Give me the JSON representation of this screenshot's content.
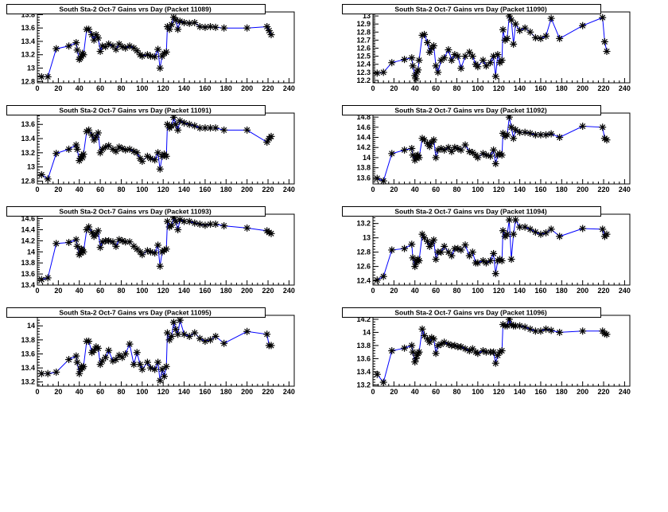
{
  "chart_data": [
    {
      "type": "line",
      "title": "South Sta-2 Oct-7 Gains vrs Day (Packet 11089)",
      "xlabel": "",
      "ylabel": "",
      "xlim": [
        0,
        245
      ],
      "ylim": [
        12.78,
        13.84
      ],
      "xticks": [
        "0",
        "20",
        "40",
        "60",
        "80",
        "100",
        "120",
        "140",
        "160",
        "180",
        "200",
        "220",
        "240"
      ],
      "yticks": [
        12.8,
        13.0,
        13.2,
        13.4,
        13.6,
        13.8
      ],
      "ytick_labels": [
        "12.8",
        "13",
        "13.2",
        "13.4",
        "13.6",
        "13.8"
      ],
      "series": [
        {
          "name": "gain",
          "color": "#0000ff",
          "marker": "asterisk",
          "values": [
            12.87,
            12.87,
            13.29,
            13.33,
            13.38,
            13.27,
            13.13,
            13.15,
            13.18,
            13.22,
            13.2,
            13.58,
            13.58,
            13.5,
            13.42,
            13.5,
            13.45,
            13.25,
            13.33,
            13.32,
            13.36,
            13.33,
            13.28,
            13.36,
            13.32,
            13.3,
            13.33,
            13.3,
            13.26,
            13.2,
            13.18,
            13.2,
            13.18,
            13.17,
            13.28,
            13.0,
            13.18,
            13.22,
            13.24,
            13.62,
            13.58,
            13.65,
            13.76,
            13.72,
            13.58,
            13.7,
            13.68,
            13.67,
            13.68,
            13.62,
            13.61,
            13.62,
            13.61,
            13.6,
            13.6,
            13.62,
            13.56,
            13.5
          ]
        }
      ]
    },
    {
      "type": "line",
      "title": "South Sta-2 Oct-7 Gains vrs Day (Packet 11090)",
      "xlabel": "",
      "ylabel": "",
      "xlim": [
        0,
        245
      ],
      "ylim": [
        12.17,
        13.05
      ],
      "xticks": [
        "0",
        "20",
        "40",
        "60",
        "80",
        "100",
        "120",
        "140",
        "160",
        "180",
        "200",
        "220",
        "240"
      ],
      "yticks": [
        12.2,
        12.3,
        12.4,
        12.5,
        12.6,
        12.7,
        12.8,
        12.9,
        13.0
      ],
      "ytick_labels": [
        "12.2",
        "12.3",
        "12.4",
        "12.5",
        "12.6",
        "12.7",
        "12.8",
        "12.9",
        "13"
      ],
      "series": [
        {
          "name": "gain",
          "color": "#0000ff",
          "marker": "asterisk",
          "values": [
            12.29,
            12.3,
            12.42,
            12.46,
            12.48,
            12.38,
            12.26,
            12.22,
            12.3,
            12.33,
            12.45,
            12.76,
            12.77,
            12.67,
            12.55,
            12.6,
            12.63,
            12.38,
            12.3,
            12.45,
            12.48,
            12.58,
            12.45,
            12.52,
            12.5,
            12.35,
            12.5,
            12.55,
            12.5,
            12.4,
            12.37,
            12.45,
            12.38,
            12.42,
            12.5,
            12.25,
            12.52,
            12.42,
            12.45,
            12.83,
            12.7,
            12.72,
            13.0,
            12.95,
            12.65,
            12.9,
            12.82,
            12.85,
            12.8,
            12.73,
            12.72,
            12.75,
            12.97,
            12.72,
            12.88,
            12.98,
            12.68,
            12.56
          ]
        }
      ]
    },
    {
      "type": "line",
      "title": "South Sta-2 Oct-7 Gains vrs Day (Packet 11091)",
      "xlabel": "",
      "ylabel": "",
      "xlim": [
        0,
        245
      ],
      "ylim": [
        12.76,
        13.76
      ],
      "xticks": [
        "0",
        "20",
        "40",
        "60",
        "80",
        "100",
        "120",
        "140",
        "160",
        "180",
        "200",
        "220",
        "240"
      ],
      "yticks": [
        12.8,
        13.0,
        13.2,
        13.4,
        13.6
      ],
      "ytick_labels": [
        "12.8",
        "13",
        "13.2",
        "13.4",
        "13.6"
      ],
      "series": [
        {
          "name": "gain",
          "color": "#0000ff",
          "marker": "asterisk",
          "values": [
            12.89,
            12.83,
            13.19,
            13.25,
            13.31,
            13.25,
            13.09,
            13.12,
            13.15,
            13.13,
            13.18,
            13.5,
            13.52,
            13.45,
            13.38,
            13.42,
            13.48,
            13.2,
            13.25,
            13.28,
            13.3,
            13.25,
            13.22,
            13.28,
            13.26,
            13.24,
            13.25,
            13.22,
            13.2,
            13.12,
            13.08,
            13.15,
            13.12,
            13.1,
            13.2,
            12.97,
            13.15,
            13.18,
            13.15,
            13.6,
            13.55,
            13.58,
            13.7,
            13.6,
            13.52,
            13.65,
            13.62,
            13.6,
            13.58,
            13.55,
            13.55,
            13.55,
            13.55,
            13.52,
            13.52,
            13.35,
            13.4,
            13.43
          ]
        }
      ]
    },
    {
      "type": "line",
      "title": "South Sta-2 Oct-7 Gains vrs Day (Packet 11092)",
      "xlabel": "",
      "ylabel": "",
      "xlim": [
        0,
        245
      ],
      "ylim": [
        13.48,
        14.88
      ],
      "xticks": [
        "0",
        "20",
        "40",
        "60",
        "80",
        "100",
        "120",
        "140",
        "160",
        "180",
        "200",
        "220",
        "240"
      ],
      "yticks": [
        13.6,
        13.8,
        14.0,
        14.2,
        14.4,
        14.6,
        14.8
      ],
      "ytick_labels": [
        "13.6",
        "13.8",
        "14",
        "14.2",
        "14.4",
        "14.6",
        "14.8"
      ],
      "series": [
        {
          "name": "gain",
          "color": "#0000ff",
          "marker": "asterisk",
          "values": [
            13.59,
            13.54,
            14.08,
            14.15,
            14.18,
            14.05,
            13.95,
            14.0,
            14.03,
            14.05,
            14.0,
            14.38,
            14.35,
            14.28,
            14.22,
            14.3,
            14.35,
            14.0,
            14.15,
            14.18,
            14.15,
            14.2,
            14.12,
            14.2,
            14.18,
            14.15,
            14.25,
            14.12,
            14.1,
            14.05,
            14.0,
            14.08,
            14.05,
            14.03,
            14.15,
            13.88,
            14.05,
            14.08,
            14.05,
            14.48,
            14.42,
            14.45,
            14.8,
            14.6,
            14.38,
            14.55,
            14.5,
            14.5,
            14.48,
            14.45,
            14.45,
            14.45,
            14.47,
            14.4,
            14.62,
            14.6,
            14.38,
            14.35
          ]
        }
      ]
    },
    {
      "type": "line",
      "title": "South Sta-2 Oct-7 Gains vrs Day (Packet 11093)",
      "xlabel": "",
      "ylabel": "",
      "xlim": [
        0,
        245
      ],
      "ylim": [
        13.4,
        14.68
      ],
      "xticks": [
        "0",
        "20",
        "40",
        "60",
        "80",
        "100",
        "120",
        "140",
        "160",
        "180",
        "200",
        "220",
        "240"
      ],
      "yticks": [
        13.4,
        13.6,
        13.8,
        14.0,
        14.2,
        14.4,
        14.6
      ],
      "ytick_labels": [
        "13.4",
        "13.6",
        "13.8",
        "14",
        "14.2",
        "14.4",
        "14.6"
      ],
      "series": [
        {
          "name": "gain",
          "color": "#0000ff",
          "marker": "asterisk",
          "values": [
            13.5,
            13.53,
            14.15,
            14.17,
            14.22,
            14.1,
            13.95,
            13.98,
            14.05,
            14.03,
            14.0,
            14.4,
            14.45,
            14.35,
            14.28,
            14.32,
            14.38,
            14.08,
            14.18,
            14.2,
            14.2,
            14.18,
            14.1,
            14.22,
            14.2,
            14.18,
            14.18,
            14.1,
            14.05,
            14.0,
            13.95,
            14.02,
            14.0,
            13.98,
            14.12,
            13.74,
            14.0,
            14.03,
            14.05,
            14.55,
            14.45,
            14.48,
            14.62,
            14.55,
            14.4,
            14.58,
            14.55,
            14.55,
            14.52,
            14.5,
            14.48,
            14.5,
            14.5,
            14.47,
            14.43,
            14.38,
            14.35,
            14.33
          ]
        }
      ]
    },
    {
      "type": "line",
      "title": "South Sta-2 Oct-7 Gains vrs Day (Packet 11094)",
      "xlabel": "",
      "ylabel": "",
      "xlim": [
        0,
        245
      ],
      "ylim": [
        12.34,
        13.33
      ],
      "xticks": [
        "0",
        "20",
        "40",
        "60",
        "80",
        "100",
        "120",
        "140",
        "160",
        "180",
        "200",
        "220",
        "240"
      ],
      "yticks": [
        12.4,
        12.6,
        12.8,
        13.0,
        13.2
      ],
      "ytick_labels": [
        "12.4",
        "12.6",
        "12.8",
        "13",
        "13.2"
      ],
      "series": [
        {
          "name": "gain",
          "color": "#0000ff",
          "marker": "asterisk",
          "values": [
            12.41,
            12.46,
            12.83,
            12.85,
            12.91,
            12.72,
            12.6,
            12.65,
            12.68,
            12.7,
            12.68,
            13.05,
            13.0,
            12.95,
            12.88,
            12.92,
            12.97,
            12.7,
            12.8,
            12.8,
            12.88,
            12.8,
            12.75,
            12.85,
            12.85,
            12.83,
            12.9,
            12.75,
            12.8,
            12.65,
            12.65,
            12.68,
            12.65,
            12.68,
            12.78,
            12.5,
            12.68,
            12.7,
            12.68,
            13.1,
            13.02,
            13.05,
            13.25,
            12.7,
            13.05,
            13.25,
            13.15,
            13.15,
            13.12,
            13.08,
            13.05,
            13.07,
            13.12,
            13.02,
            13.13,
            13.12,
            13.02,
            13.05
          ]
        }
      ]
    },
    {
      "type": "line",
      "title": "South Sta-2 Oct-7 Gains vrs Day (Packet 11095)",
      "xlabel": "",
      "ylabel": "",
      "xlim": [
        0,
        245
      ],
      "ylim": [
        13.14,
        14.15
      ],
      "xticks": [
        "0",
        "20",
        "40",
        "60",
        "80",
        "100",
        "120",
        "140",
        "160",
        "180",
        "200",
        "220",
        "240"
      ],
      "yticks": [
        13.2,
        13.4,
        13.6,
        13.8,
        14.0
      ],
      "ytick_labels": [
        "13.2",
        "13.4",
        "13.6",
        "13.8",
        "14"
      ],
      "series": [
        {
          "name": "gain",
          "color": "#0000ff",
          "marker": "asterisk",
          "values": [
            13.32,
            13.32,
            13.34,
            13.52,
            13.57,
            13.48,
            13.32,
            13.38,
            13.42,
            13.4,
            13.42,
            13.78,
            13.78,
            13.62,
            13.65,
            13.7,
            13.68,
            13.45,
            13.5,
            13.55,
            13.65,
            13.5,
            13.52,
            13.58,
            13.55,
            13.6,
            13.74,
            13.45,
            13.62,
            13.45,
            13.38,
            13.48,
            13.4,
            13.38,
            13.48,
            13.22,
            13.38,
            13.28,
            13.42,
            13.9,
            13.8,
            13.85,
            14.05,
            13.95,
            13.88,
            14.08,
            13.88,
            13.85,
            13.9,
            13.82,
            13.78,
            13.8,
            13.85,
            13.75,
            13.92,
            13.88,
            13.72,
            13.72
          ]
        }
      ]
    },
    {
      "type": "line",
      "title": "South Sta-2 Oct-7 Gains vrs Day (Packet 11096)",
      "xlabel": "",
      "ylabel": "",
      "xlim": [
        0,
        245
      ],
      "ylim": [
        13.18,
        14.26
      ],
      "xticks": [
        "0",
        "20",
        "40",
        "60",
        "80",
        "100",
        "120",
        "140",
        "160",
        "180",
        "200",
        "220",
        "240"
      ],
      "yticks": [
        13.2,
        13.4,
        13.6,
        13.8,
        14.0,
        14.2
      ],
      "ytick_labels": [
        "13.2",
        "13.4",
        "13.6",
        "13.8",
        "14",
        "14.2"
      ],
      "series": [
        {
          "name": "gain",
          "color": "#0000ff",
          "marker": "asterisk",
          "values": [
            13.36,
            13.24,
            13.72,
            13.76,
            13.8,
            13.7,
            13.55,
            13.6,
            13.65,
            13.68,
            13.7,
            14.05,
            13.95,
            13.9,
            13.85,
            13.92,
            13.9,
            13.68,
            13.8,
            13.82,
            13.85,
            13.82,
            13.8,
            13.8,
            13.78,
            13.78,
            13.75,
            13.72,
            13.75,
            13.7,
            13.68,
            13.72,
            13.7,
            13.7,
            13.7,
            13.53,
            13.65,
            13.7,
            13.72,
            14.12,
            14.1,
            14.1,
            14.2,
            14.12,
            14.1,
            14.1,
            14.1,
            14.08,
            14.05,
            14.02,
            14.02,
            14.05,
            14.03,
            14.0,
            14.02,
            14.02,
            13.98,
            13.97
          ]
        }
      ]
    }
  ],
  "x_days": [
    4,
    10,
    18,
    30,
    37,
    38,
    40,
    41,
    42,
    43,
    44,
    47,
    49,
    52,
    54,
    56,
    58,
    60,
    62,
    65,
    68,
    72,
    75,
    78,
    81,
    84,
    88,
    92,
    95,
    98,
    100,
    105,
    108,
    112,
    115,
    117,
    119,
    121,
    123,
    124,
    126,
    128,
    130,
    132,
    134,
    136,
    140,
    145,
    150,
    155,
    160,
    165,
    170,
    178,
    200,
    219,
    221,
    223
  ]
}
